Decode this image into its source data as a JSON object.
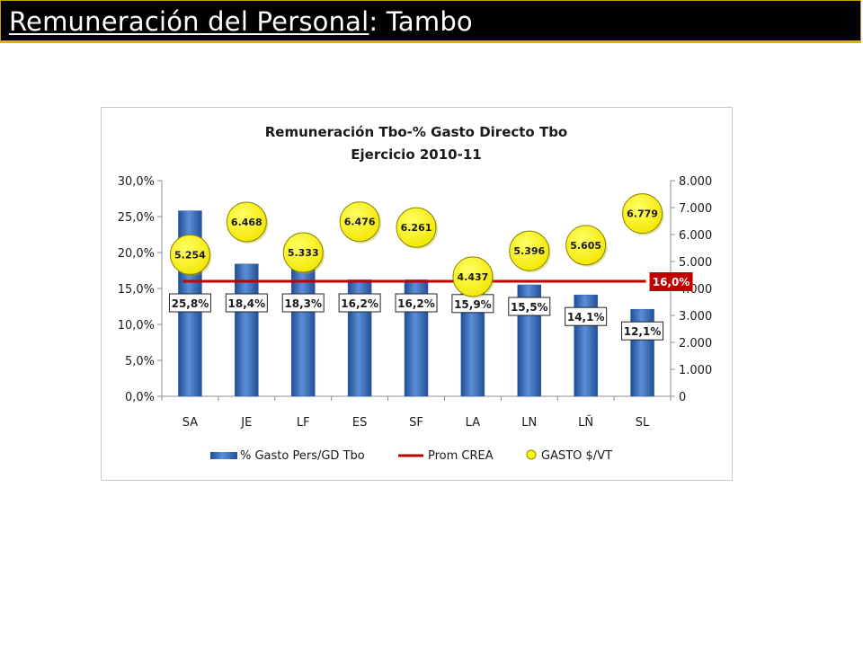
{
  "slide": {
    "title_part1": "Remuneración del Personal",
    "title_part2": ": Tambo"
  },
  "colors": {
    "bar": "#3a72c4",
    "line": "#c00000",
    "bubble": "#ffff00",
    "badge": "#c00000"
  },
  "chart_data": {
    "type": "bar",
    "title": "Remuneración Tbo-% Gasto Directo Tbo",
    "subtitle": "Ejercicio 2010-11",
    "categories": [
      "SA",
      "JE",
      "LF",
      "ES",
      "SF",
      "LA",
      "LN",
      "LÑ",
      "SL"
    ],
    "series": [
      {
        "name": "% Gasto Pers/GD Tbo",
        "axis": "left",
        "values": [
          25.8,
          18.4,
          18.3,
          16.2,
          16.2,
          15.9,
          15.5,
          14.1,
          12.1
        ],
        "labels": [
          "25,8%",
          "18,4%",
          "18,3%",
          "16,2%",
          "16,2%",
          "15,9%",
          "15,5%",
          "14,1%",
          "12,1%"
        ]
      },
      {
        "name": "Prom CREA",
        "type": "line",
        "axis": "left",
        "value": 16.0,
        "label": "16,0%"
      },
      {
        "name": "GASTO $/VT",
        "type": "scatter",
        "axis": "right",
        "values": [
          5254,
          6468,
          5333,
          6476,
          6261,
          4437,
          5396,
          5605,
          6779
        ],
        "labels": [
          "5.254",
          "6.468",
          "5.333",
          "6.476",
          "6.261",
          "4.437",
          "5.396",
          "5.605",
          "6.779"
        ]
      }
    ],
    "y_left": {
      "min": 0,
      "max": 30,
      "ticks": [
        "0,0%",
        "5,0%",
        "10,0%",
        "15,0%",
        "20,0%",
        "25,0%",
        "30,0%"
      ]
    },
    "y_right": {
      "min": 0,
      "max": 8000,
      "ticks": [
        "0",
        "1.000",
        "2.000",
        "3.000",
        "4.000",
        "5.000",
        "6.000",
        "7.000",
        "8.000"
      ]
    },
    "legend_position": "bottom",
    "grid": false
  }
}
